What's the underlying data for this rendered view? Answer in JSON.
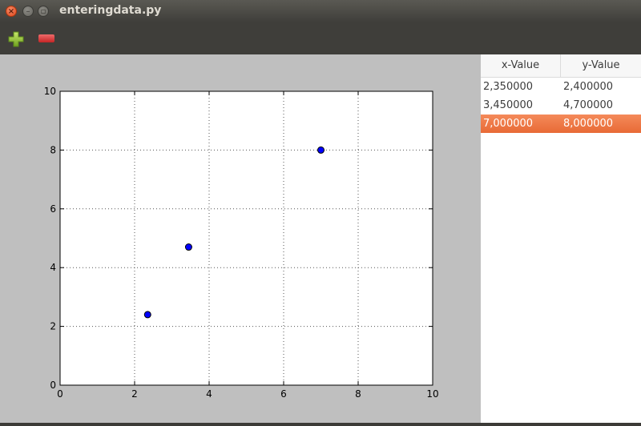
{
  "window": {
    "title": "enteringdata.py"
  },
  "toolbar": {
    "add_icon": "plus-icon",
    "remove_icon": "minus-icon"
  },
  "table": {
    "headers": [
      "x-Value",
      "y-Value"
    ],
    "rows": [
      {
        "x": "2,350000",
        "y": "2,400000",
        "selected": false
      },
      {
        "x": "3,450000",
        "y": "4,700000",
        "selected": false
      },
      {
        "x": "7,000000",
        "y": "8,000000",
        "selected": true
      }
    ],
    "selection_color": "#e8703c"
  },
  "chart_data": {
    "type": "scatter",
    "x": [
      2.35,
      3.45,
      7.0
    ],
    "y": [
      2.4,
      4.7,
      8.0
    ],
    "xlim": [
      0,
      10
    ],
    "ylim": [
      0,
      10
    ],
    "xticks": [
      "0",
      "2",
      "4",
      "6",
      "8",
      "10"
    ],
    "yticks": [
      "0",
      "2",
      "4",
      "6",
      "8",
      "10"
    ],
    "grid": true,
    "marker_color": "#0000ff"
  }
}
